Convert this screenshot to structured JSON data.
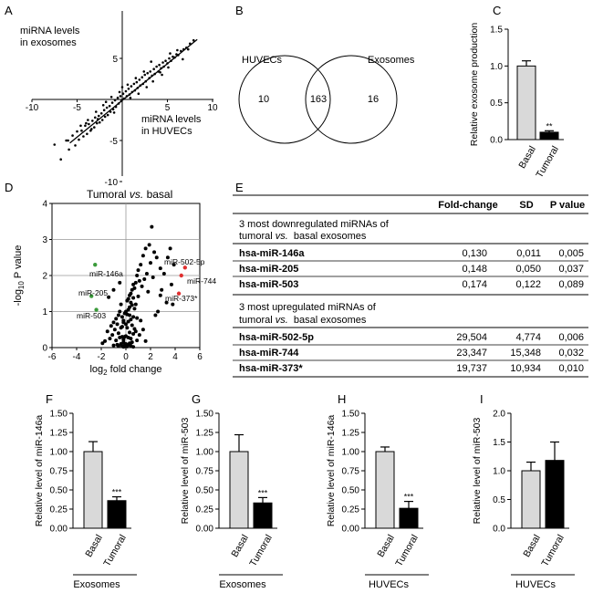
{
  "panels": {
    "A": {
      "label": "A",
      "y_label_line1": "miRNA levels",
      "y_label_line2": "in exosomes",
      "x_label_line1": "miRNA levels",
      "x_label_line2": "in HUVECs",
      "x_ticks": [
        "-10",
        "-5",
        "5",
        "10"
      ],
      "y_ticks": [
        "5",
        "-5",
        "-10"
      ]
    },
    "B": {
      "label": "B",
      "left_set": "HUVECs",
      "right_set": "Exosomes",
      "left_only": "10",
      "shared": "163",
      "right_only": "16"
    },
    "C": {
      "label": "C",
      "significance": "**"
    },
    "D": {
      "label": "D",
      "title_main": "Tumoral ",
      "title_italic": "vs.",
      "title_end": " basal",
      "annotations": {
        "mir146a": "miR-146a",
        "mir205": "miR-205",
        "mir503": "miR-503",
        "mir5025p": "miR-502-5p",
        "mir744": "miR-744",
        "mir373": "miR-373*"
      }
    },
    "E": {
      "label": "E",
      "headers": [
        "Fold-change",
        "SD",
        "P value"
      ],
      "group1_line1": "3 most downregulated miRNAs of",
      "group1_line2_a": "tumoral ",
      "group1_line2_i": "vs.",
      "group1_line2_b": "  basal exosomes",
      "group1_rows": [
        {
          "name": "hsa-miR-146a",
          "fc": "0,130",
          "sd": "0,011",
          "p": "0,005"
        },
        {
          "name": "hsa-miR-205",
          "fc": "0,148",
          "sd": "0,050",
          "p": "0,037"
        },
        {
          "name": "hsa-miR-503",
          "fc": "0,174",
          "sd": "0,122",
          "p": "0,089"
        }
      ],
      "group2_line1": "3 most upregulated miRNAs of",
      "group2_line2_a": "tumoral ",
      "group2_line2_i": "vs.",
      "group2_line2_b": "  basal exosomes",
      "group2_rows": [
        {
          "name": "hsa-miR-502-5p",
          "fc": "29,504",
          "sd": "4,774",
          "p": "0,006"
        },
        {
          "name": "hsa-miR-744",
          "fc": "23,347",
          "sd": "15,348",
          "p": "0,032"
        },
        {
          "name": "hsa-miR-373*",
          "fc": "19,737",
          "sd": "10,934",
          "p": "0,010"
        }
      ]
    },
    "F": {
      "label": "F",
      "group": "Exosomes",
      "significance": "***"
    },
    "G": {
      "label": "G",
      "group": "Exosomes",
      "significance": "***"
    },
    "H": {
      "label": "H",
      "group": "HUVECs",
      "significance": "***"
    },
    "I": {
      "label": "I",
      "group": "HUVECs",
      "significance": ""
    }
  },
  "colors": {
    "basal_bar": "#d9d9d9",
    "tumoral_bar": "#000000",
    "green_point": "#3a9a3a",
    "red_point": "#e03030"
  },
  "chart_data": [
    {
      "id": "A",
      "type": "scatter",
      "xlabel": "miRNA levels in HUVECs",
      "ylabel": "miRNA levels in exosomes",
      "xlim": [
        -10,
        10
      ],
      "ylim": [
        -10,
        10
      ],
      "x_ticks": [
        -10,
        -5,
        5,
        10
      ],
      "y_ticks": [
        5,
        -5,
        -10
      ],
      "regression_line": {
        "x": [
          -5.8,
          8.3
        ],
        "y": [
          -5.3,
          7.3
        ]
      },
      "points_x": [
        -7.5,
        -6.8,
        -6.2,
        -5.9,
        -5.5,
        -5.2,
        -5.0,
        -4.8,
        -4.5,
        -4.3,
        -4.1,
        -3.9,
        -3.7,
        -3.5,
        -3.3,
        -3.1,
        -3.0,
        -2.8,
        -2.6,
        -2.5,
        -2.3,
        -2.2,
        -2.0,
        -1.9,
        -1.7,
        -1.6,
        -1.4,
        -1.3,
        -1.1,
        -1.0,
        -0.8,
        -0.7,
        -0.5,
        -0.4,
        -0.2,
        -0.1,
        0.1,
        0.2,
        0.4,
        0.5,
        0.7,
        0.8,
        1.0,
        1.1,
        1.3,
        1.4,
        1.6,
        1.7,
        1.9,
        2.0,
        2.2,
        2.3,
        2.5,
        2.6,
        2.8,
        3.0,
        3.1,
        3.3,
        3.5,
        3.6,
        3.8,
        4.0,
        4.1,
        4.3,
        4.5,
        4.6,
        4.8,
        5.0,
        5.2,
        5.4,
        5.6,
        5.8,
        6.0,
        6.2,
        6.5,
        6.8,
        7.1,
        7.5,
        7.9,
        -4.6,
        -3.8,
        -2.9,
        -2.1,
        -1.2,
        -0.3,
        0.6,
        1.5,
        2.4,
        3.2,
        4.2,
        5.1,
        6.1,
        -3.4,
        -1.8,
        0.0,
        1.8,
        3.4,
        5.3,
        6.7,
        -6.0,
        -4.0,
        -2.7,
        -0.9,
        0.9,
        2.7,
        4.4,
        7.3
      ],
      "points_y": [
        -5.5,
        -7.3,
        -5.0,
        -6.1,
        -4.4,
        -5.6,
        -3.9,
        -4.9,
        -3.8,
        -4.5,
        -3.2,
        -4.2,
        -3.0,
        -3.8,
        -2.6,
        -3.4,
        -2.2,
        -2.9,
        -2.0,
        -2.8,
        -1.7,
        -2.5,
        -1.3,
        -2.1,
        -1.0,
        -1.9,
        -0.8,
        -1.5,
        -0.4,
        -1.2,
        -0.1,
        -0.9,
        0.2,
        -0.5,
        0.4,
        -0.2,
        0.7,
        0.1,
        1.0,
        0.4,
        1.3,
        0.6,
        1.6,
        0.9,
        1.9,
        1.1,
        2.1,
        1.4,
        2.4,
        1.7,
        2.7,
        1.9,
        3.0,
        2.2,
        3.2,
        2.6,
        3.4,
        2.9,
        3.7,
        3.1,
        4.0,
        3.4,
        4.2,
        3.8,
        4.5,
        4.0,
        4.7,
        4.4,
        5.0,
        4.7,
        5.2,
        5.1,
        5.5,
        5.4,
        5.9,
        6.1,
        6.3,
        6.8,
        7.2,
        -3.2,
        -2.5,
        -1.5,
        -0.7,
        0.3,
        0.9,
        1.8,
        2.6,
        3.4,
        4.6,
        3.3,
        3.9,
        6.0,
        -3.6,
        -0.3,
        1.5,
        0.7,
        2.2,
        5.6,
        4.9,
        -5.0,
        -2.9,
        -2.4,
        -1.6,
        0.2,
        1.5,
        3.0,
        6.1
      ]
    },
    {
      "id": "C",
      "type": "bar",
      "ylabel": "Relative exosome production",
      "categories": [
        "Basal",
        "Tumoral"
      ],
      "values": [
        1.0,
        0.1
      ],
      "errors": [
        0.07,
        0.02
      ],
      "ylim": [
        0,
        1.5
      ],
      "y_ticks": [
        0.0,
        0.5,
        1.0,
        1.5
      ]
    },
    {
      "id": "D",
      "type": "scatter",
      "xlabel": "log2 fold change",
      "ylabel": "-log10 P value",
      "xlim": [
        -6,
        6
      ],
      "ylim": [
        0,
        4
      ],
      "x_ticks": [
        -6,
        -4,
        -2,
        0,
        2,
        4,
        6
      ],
      "y_ticks": [
        0,
        1,
        2,
        3,
        4
      ],
      "reference_lines": {
        "x": [
          0
        ],
        "y": [
          1,
          2,
          3
        ]
      },
      "highlight_points": [
        {
          "label": "miR-146a",
          "x": -2.5,
          "y": 2.3,
          "color": "green"
        },
        {
          "label": "miR-205",
          "x": -2.8,
          "y": 1.43,
          "color": "green"
        },
        {
          "label": "miR-503",
          "x": -2.4,
          "y": 1.05,
          "color": "green"
        },
        {
          "label": "miR-502-5p",
          "x": 4.8,
          "y": 2.22,
          "color": "red"
        },
        {
          "label": "miR-744",
          "x": 4.5,
          "y": 2.0,
          "color": "red"
        },
        {
          "label": "miR-373*",
          "x": 4.3,
          "y": 1.5,
          "color": "red"
        }
      ],
      "points_x": [
        2.1,
        1.9,
        2.3,
        1.6,
        2.5,
        1.4,
        2.0,
        1.2,
        2.8,
        1.0,
        1.7,
        0.9,
        2.2,
        1.5,
        1.1,
        0.8,
        0.6,
        1.3,
        0.7,
        0.5,
        1.8,
        0.4,
        0.3,
        1.0,
        0.6,
        0.2,
        0.1,
        0.4,
        0.8,
        0.5,
        0.3,
        0.7,
        0.2,
        0.0,
        -0.1,
        0.1,
        0.3,
        0.6,
        0.9,
        0.4,
        1.2,
        0.2,
        -0.2,
        0.0,
        0.5,
        -0.3,
        0.1,
        0.7,
        1.4,
        0.8,
        0.3,
        0.6,
        1.1,
        0.0,
        -0.1,
        0.2,
        0.4,
        -0.2,
        0.9,
        1.6,
        0.5,
        0.3,
        0.0,
        0.2,
        -0.1,
        0.4,
        0.1,
        0.6,
        -0.4,
        -0.5,
        -0.6,
        -0.3,
        -0.8,
        -0.2,
        -1.0,
        -0.7,
        -1.2,
        -0.4,
        -0.9,
        -1.5,
        -0.6,
        -1.1,
        -0.3,
        -0.5,
        -1.3,
        -0.8,
        -1.7,
        -0.2,
        -1.9,
        -0.4,
        -0.7,
        -1.0,
        -0.3,
        -0.6,
        -0.1,
        -0.2,
        3.6,
        3.4,
        3.9,
        3.1,
        3.7,
        2.9,
        3.3,
        2.6,
        2.4,
        2.8,
        3.8,
        -1.0,
        -1.4,
        -0.5
      ],
      "points_y": [
        3.35,
        2.85,
        2.65,
        2.75,
        2.5,
        2.55,
        2.35,
        2.3,
        2.2,
        2.15,
        2.05,
        2.0,
        1.95,
        1.9,
        1.85,
        1.8,
        1.75,
        1.7,
        1.65,
        1.6,
        1.55,
        1.5,
        1.45,
        1.42,
        1.38,
        1.35,
        1.3,
        1.25,
        1.2,
        1.18,
        1.12,
        1.08,
        1.05,
        1.0,
        0.95,
        0.92,
        0.9,
        0.85,
        0.82,
        0.78,
        0.75,
        0.72,
        0.7,
        0.65,
        0.62,
        0.58,
        0.55,
        0.52,
        0.5,
        0.45,
        0.42,
        0.38,
        0.35,
        0.32,
        0.3,
        0.28,
        0.25,
        0.22,
        0.2,
        0.18,
        0.15,
        0.12,
        0.1,
        0.08,
        0.06,
        0.05,
        0.03,
        0.02,
        1.2,
        1.0,
        0.9,
        0.85,
        0.8,
        0.75,
        0.7,
        0.65,
        0.6,
        0.55,
        0.5,
        0.45,
        0.4,
        0.35,
        0.3,
        0.28,
        0.25,
        0.2,
        0.18,
        0.15,
        0.12,
        0.1,
        0.08,
        0.06,
        0.05,
        0.04,
        0.03,
        0.02,
        2.75,
        2.5,
        2.3,
        2.05,
        1.75,
        1.6,
        1.25,
        1.0,
        0.9,
        1.45,
        1.2,
        1.6,
        1.4,
        1.8
      ]
    },
    {
      "id": "F",
      "type": "bar",
      "ylabel": "Relative level of miR-146a",
      "categories": [
        "Basal",
        "Tumoral"
      ],
      "values": [
        1.0,
        0.36
      ],
      "errors": [
        0.13,
        0.05
      ],
      "ylim": [
        0,
        1.5
      ],
      "y_ticks": [
        0.0,
        0.25,
        0.5,
        0.75,
        1.0,
        1.25,
        1.5
      ]
    },
    {
      "id": "G",
      "type": "bar",
      "ylabel": "Relative level of miR-503",
      "categories": [
        "Basal",
        "Tumoral"
      ],
      "values": [
        1.0,
        0.33
      ],
      "errors": [
        0.22,
        0.07
      ],
      "ylim": [
        0,
        1.5
      ],
      "y_ticks": [
        0.0,
        0.25,
        0.5,
        0.75,
        1.0,
        1.25,
        1.5
      ]
    },
    {
      "id": "H",
      "type": "bar",
      "ylabel": "Relative level of miR-146a",
      "categories": [
        "Basal",
        "Tumoral"
      ],
      "values": [
        1.0,
        0.26
      ],
      "errors": [
        0.06,
        0.09
      ],
      "ylim": [
        0,
        1.5
      ],
      "y_ticks": [
        0.0,
        0.25,
        0.5,
        0.75,
        1.0,
        1.25,
        1.5
      ]
    },
    {
      "id": "I",
      "type": "bar",
      "ylabel": "Relative level of miR-503",
      "categories": [
        "Basal",
        "Tumoral"
      ],
      "values": [
        1.0,
        1.18
      ],
      "errors": [
        0.15,
        0.32
      ],
      "ylim": [
        0,
        2.0
      ],
      "y_ticks": [
        0.0,
        0.5,
        1.0,
        1.5,
        2.0
      ]
    }
  ]
}
